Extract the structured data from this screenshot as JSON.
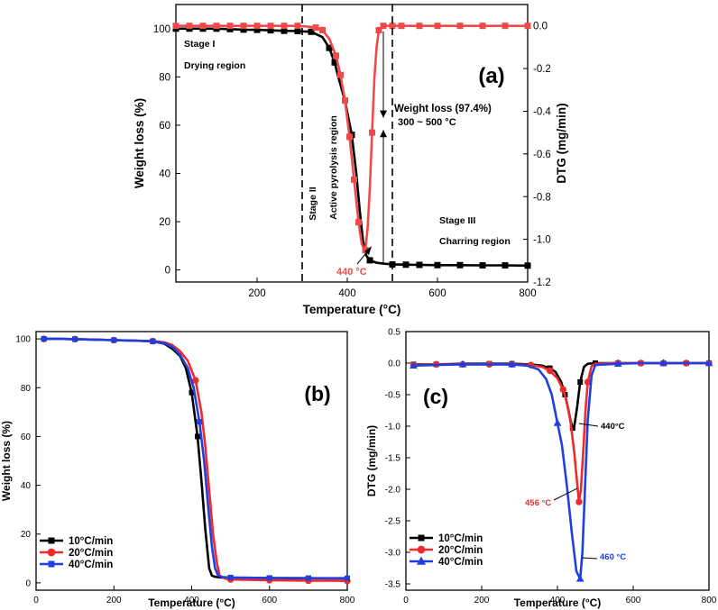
{
  "chart_data": [
    {
      "id": "a",
      "type": "line",
      "panel_label": "(a)",
      "xlabel": "Temperature (°C)",
      "ylabel": "Weight loss (%)",
      "y2label": "DTG (mg/min)",
      "xlim": [
        20,
        800
      ],
      "ylim": [
        -5,
        110
      ],
      "y2lim": [
        -1.2,
        0.1
      ],
      "xticks": [
        200,
        400,
        600,
        800
      ],
      "yticks": [
        0,
        20,
        40,
        60,
        80,
        100
      ],
      "y2ticks": [
        0.0,
        -0.2,
        -0.4,
        -0.6,
        -0.8,
        -1.0,
        -1.2
      ],
      "y2ticklabels": [
        "0.0",
        "-0.2",
        "-0.4",
        "-0.6",
        "-0.8",
        "-1.0",
        "-1.2"
      ],
      "series": [
        {
          "name": "Weight loss",
          "axis": "left",
          "color": "#000000",
          "marker": "square",
          "x": [
            20,
            50,
            80,
            110,
            140,
            170,
            200,
            230,
            260,
            290,
            320,
            345,
            360,
            372,
            380,
            395,
            410,
            420,
            428,
            435,
            442,
            450,
            465,
            480,
            500,
            530,
            560,
            600,
            650,
            700,
            750,
            800
          ],
          "y": [
            100,
            100,
            100,
            100,
            99.8,
            99.6,
            99.5,
            99.3,
            99.1,
            99,
            98.7,
            96.5,
            92,
            86,
            80,
            70,
            56,
            40,
            24,
            12,
            6,
            4,
            3,
            2.6,
            2.3,
            2.2,
            2.1,
            2.0,
            2.0,
            1.9,
            1.9,
            1.8
          ],
          "marker_x": [
            20,
            50,
            80,
            110,
            140,
            170,
            200,
            230,
            260,
            290,
            320,
            360,
            372,
            410,
            450,
            500,
            530,
            560,
            600,
            650,
            700,
            750,
            800
          ]
        },
        {
          "name": "DTG",
          "axis": "right",
          "color": "#ef4a4a",
          "marker": "square",
          "x": [
            20,
            50,
            80,
            110,
            140,
            170,
            200,
            230,
            260,
            290,
            310,
            330,
            345,
            360,
            375,
            385,
            395,
            405,
            415,
            425,
            432,
            438,
            440,
            445,
            450,
            455,
            460,
            465,
            470,
            480,
            500,
            520,
            560,
            600,
            650,
            700,
            750,
            800
          ],
          "y": [
            0,
            0,
            0,
            0,
            0,
            0,
            0,
            0,
            0,
            0,
            -0.003,
            -0.008,
            -0.02,
            -0.06,
            -0.14,
            -0.23,
            -0.35,
            -0.52,
            -0.72,
            -0.92,
            -1.02,
            -1.05,
            -1.05,
            -0.95,
            -0.76,
            -0.5,
            -0.25,
            -0.1,
            -0.02,
            0,
            0,
            0,
            0,
            0,
            0,
            0,
            0,
            0
          ],
          "marker_x": [
            20,
            50,
            80,
            110,
            140,
            170,
            200,
            230,
            260,
            290,
            330,
            345,
            375,
            385,
            395,
            405,
            415,
            425,
            440,
            455,
            470,
            480,
            500,
            520,
            560,
            600,
            650,
            700,
            750,
            800
          ]
        }
      ],
      "annotations": [
        {
          "key": "stage1",
          "text": "Stage I",
          "serif": true
        },
        {
          "key": "drying",
          "text": "Drying region",
          "serif": true
        },
        {
          "key": "stage2",
          "text": "Stage II",
          "serif": true
        },
        {
          "key": "active",
          "text": "Active pyrolysis region",
          "serif": true
        },
        {
          "key": "stage3",
          "text": "Stage III",
          "serif": true
        },
        {
          "key": "charring",
          "text": "Charring region",
          "serif": true
        },
        {
          "key": "wl1",
          "text": "Weight loss (97.4%)"
        },
        {
          "key": "wl2",
          "text": "300 ~ 500 °C"
        },
        {
          "key": "peak",
          "text": "440 °C",
          "color": "#ef4a4a"
        }
      ],
      "vlines": [
        300,
        500
      ]
    },
    {
      "id": "b",
      "type": "line",
      "panel_label": "(b)",
      "xlabel": "Temperature (°C)",
      "ylabel": "Weight loss (%)",
      "xlim": [
        0,
        800
      ],
      "ylim": [
        -3,
        103
      ],
      "xticks": [
        0,
        200,
        400,
        600,
        800
      ],
      "yticks": [
        0,
        20,
        40,
        60,
        80,
        100
      ],
      "legend": [
        "10°C/min",
        "20°C/min",
        "40°C/min"
      ],
      "series": [
        {
          "name": "10°C/min",
          "color": "#000000",
          "marker": "square",
          "x": [
            20,
            60,
            100,
            150,
            200,
            250,
            300,
            330,
            350,
            370,
            385,
            400,
            415,
            425,
            435,
            445,
            452,
            460,
            475,
            500,
            550,
            600,
            650,
            700,
            750,
            800
          ],
          "y": [
            100,
            100,
            99.9,
            99.7,
            99.5,
            99.3,
            99,
            98,
            96,
            93,
            88,
            78,
            60,
            42,
            22,
            6,
            3,
            2.5,
            2.2,
            2.1,
            2.0,
            2.0,
            1.9,
            1.9,
            1.8,
            1.8
          ],
          "marker_x": [
            20,
            100,
            200,
            300,
            400,
            415,
            500,
            600,
            700,
            800
          ]
        },
        {
          "name": "20°C/min",
          "color": "#ef2a2a",
          "marker": "circle",
          "x": [
            20,
            60,
            100,
            150,
            200,
            250,
            300,
            330,
            350,
            370,
            390,
            410,
            425,
            435,
            445,
            455,
            465,
            472,
            485,
            500,
            550,
            600,
            650,
            700,
            750,
            800
          ],
          "y": [
            100,
            100,
            99.9,
            99.7,
            99.5,
            99.3,
            99.1,
            98.6,
            97.5,
            95,
            91,
            83,
            70,
            56,
            38,
            20,
            8,
            3,
            1.8,
            1.4,
            1.2,
            1.1,
            1.0,
            0.9,
            0.9,
            0.8
          ],
          "marker_x": [
            20,
            100,
            200,
            300,
            410,
            500,
            600,
            700,
            800
          ]
        },
        {
          "name": "40°C/min",
          "color": "#1f3fe0",
          "marker": "square",
          "x": [
            20,
            60,
            100,
            150,
            200,
            250,
            300,
            330,
            350,
            370,
            390,
            405,
            420,
            432,
            442,
            452,
            460,
            468,
            478,
            500,
            550,
            600,
            650,
            700,
            750,
            800
          ],
          "y": [
            100,
            100,
            99.9,
            99.7,
            99.5,
            99.3,
            99,
            98.2,
            96.8,
            93.5,
            88,
            80,
            66,
            50,
            32,
            15,
            6,
            3,
            2.4,
            2.2,
            2.1,
            2.0,
            2.0,
            1.9,
            1.9,
            1.9
          ],
          "marker_x": [
            20,
            100,
            200,
            300,
            420,
            500,
            600,
            700,
            800
          ]
        }
      ]
    },
    {
      "id": "c",
      "type": "line",
      "panel_label": "(c)",
      "xlabel": "Temperature (°C)",
      "ylabel": "DTG (mg/min)",
      "xlim": [
        0,
        800
      ],
      "ylim": [
        -3.6,
        0.5
      ],
      "xticks": [
        0,
        200,
        400,
        600,
        800
      ],
      "yticks": [
        0.5,
        0.0,
        -0.5,
        -1.0,
        -1.5,
        -2.0,
        -2.5,
        -3.0,
        -3.5
      ],
      "yticklabels": [
        "0.5",
        "0.0",
        "-0.5",
        "-1.0",
        "-1.5",
        "-2.0",
        "-2.5",
        "-3.0",
        "-3.5"
      ],
      "legend": [
        "10°C/min",
        "20°C/min",
        "40°C/min"
      ],
      "series": [
        {
          "name": "10°C/min",
          "color": "#000000",
          "marker": "square",
          "x": [
            20,
            80,
            150,
            220,
            280,
            330,
            360,
            380,
            395,
            410,
            420,
            428,
            435,
            440,
            445,
            452,
            460,
            470,
            480,
            500,
            560,
            620,
            680,
            740,
            800
          ],
          "y": [
            -0.02,
            -0.02,
            -0.01,
            -0.01,
            -0.01,
            -0.02,
            -0.04,
            -0.08,
            -0.14,
            -0.3,
            -0.5,
            -0.72,
            -0.92,
            -1.03,
            -0.98,
            -0.7,
            -0.3,
            -0.06,
            -0.01,
            0,
            0,
            0,
            0,
            0,
            0
          ],
          "marker_x": [
            20,
            80,
            220,
            280,
            380,
            420,
            440,
            460,
            500,
            560,
            620,
            680,
            740,
            800
          ]
        },
        {
          "name": "20°C/min",
          "color": "#ef2a2a",
          "marker": "circle",
          "x": [
            20,
            80,
            150,
            220,
            280,
            330,
            360,
            380,
            400,
            415,
            425,
            435,
            445,
            452,
            457,
            462,
            468,
            474,
            480,
            490,
            500,
            560,
            620,
            680,
            740,
            800
          ],
          "y": [
            -0.03,
            -0.02,
            -0.02,
            -0.02,
            -0.02,
            -0.03,
            -0.06,
            -0.12,
            -0.24,
            -0.42,
            -0.62,
            -0.95,
            -1.45,
            -1.9,
            -2.2,
            -2.0,
            -1.4,
            -0.75,
            -0.3,
            -0.05,
            -0.01,
            0,
            0,
            0,
            0,
            0
          ],
          "marker_x": [
            20,
            80,
            150,
            220,
            280,
            330,
            380,
            415,
            457,
            480,
            560,
            620,
            680,
            740,
            800
          ]
        },
        {
          "name": "40°C/min",
          "color": "#1f3fe0",
          "marker": "triangle",
          "x": [
            20,
            80,
            150,
            220,
            280,
            320,
            350,
            370,
            385,
            400,
            412,
            425,
            438,
            450,
            460,
            466,
            472,
            480,
            490,
            500,
            560,
            620,
            680,
            740,
            800
          ],
          "y": [
            -0.04,
            -0.03,
            -0.02,
            -0.02,
            -0.02,
            -0.04,
            -0.1,
            -0.25,
            -0.5,
            -0.95,
            -1.3,
            -1.95,
            -2.7,
            -3.3,
            -3.42,
            -3.0,
            -2.1,
            -0.9,
            -0.2,
            -0.03,
            -0.01,
            0,
            0,
            0,
            0
          ],
          "marker_x": [
            20,
            150,
            280,
            400,
            460,
            560,
            680,
            800
          ]
        }
      ],
      "annotations": [
        {
          "key": "c440",
          "text": "440°C",
          "color": "#000000"
        },
        {
          "key": "c456",
          "text": "456 °C",
          "color": "#ef2a2a"
        },
        {
          "key": "c460",
          "text": "460 °C",
          "color": "#1f3fe0"
        }
      ]
    }
  ]
}
